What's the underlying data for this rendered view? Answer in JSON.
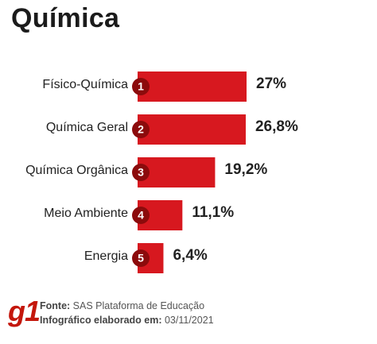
{
  "title": "Química",
  "colors": {
    "bar": "#d7181f",
    "badge": "#8c0b0c",
    "text": "#222222"
  },
  "chart_data": {
    "type": "bar",
    "orientation": "horizontal",
    "title": "Química",
    "categories": [
      "Físico-Química",
      "Química Geral",
      "Química Orgânica",
      "Meio Ambiente",
      "Energia"
    ],
    "ranks": [
      "1",
      "2",
      "3",
      "4",
      "5"
    ],
    "values": [
      27,
      26.8,
      19.2,
      11.1,
      6.4
    ],
    "value_labels": [
      "27%",
      "26,8%",
      "19,2%",
      "11,1%",
      "6,4%"
    ],
    "unit": "%",
    "grid": false,
    "legend": "none"
  },
  "footer": {
    "logo": "g1",
    "source_label": "Fonte:",
    "source_value": "SAS Plataforma de Educação",
    "credit_label": "Infográfico elaborado em:",
    "credit_value": "03/11/2021"
  }
}
